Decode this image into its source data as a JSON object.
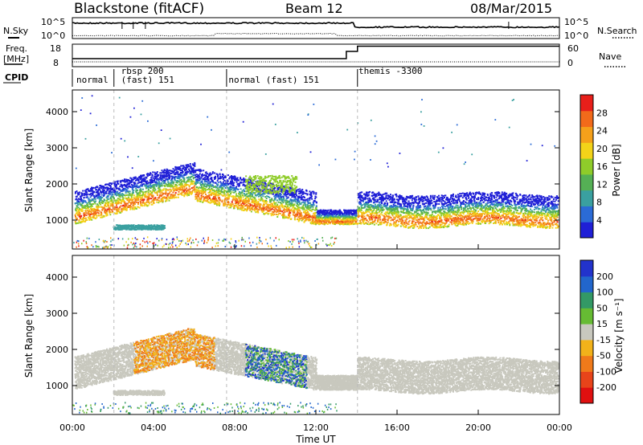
{
  "header": {
    "station": "Blackstone (fitACF)",
    "beam": "Beam 12",
    "date": "08/Mar/2015"
  },
  "side_labels": {
    "nsky": "N.Sky",
    "nsearch": "N.Search",
    "freq_line1": "Freq.",
    "freq_line2": "[MHz]",
    "nave": "Nave",
    "cpid": "CPID"
  },
  "noise_panel": {
    "left_ticks": [
      "10^5",
      "10^0"
    ],
    "right_ticks": [
      "10^5",
      "10^0"
    ]
  },
  "freq_panel": {
    "left_ticks": [
      "18",
      "8"
    ],
    "right_ticks": [
      "60",
      "0"
    ]
  },
  "cpid_labels": [
    {
      "text": "normal",
      "hour": 0.2
    },
    {
      "text": "rbsp 200",
      "hour": 2.4
    },
    {
      "text": "(fast) 151",
      "hour": 2.4
    },
    {
      "text": "normal (fast) 151",
      "hour": 7.7
    },
    {
      "text": "themis -3300",
      "hour": 14.1
    }
  ],
  "cpid_changes_hours": [
    2.05,
    7.6,
    14.05
  ],
  "colors": {
    "power_scale": [
      "#1f1fd6",
      "#2b6bd6",
      "#3aa0a0",
      "#55b055",
      "#8fcc2a",
      "#f3d319",
      "#f5a01a",
      "#f26a1a",
      "#e81f1a"
    ],
    "velocity_scale": [
      "#2233cc",
      "#2266cc",
      "#339966",
      "#66bb33",
      "#c8c8be",
      "#f2b21a",
      "#f07a1a",
      "#e8441a",
      "#e01010"
    ],
    "gray_scatter": "#c8c8be"
  },
  "chart_data": [
    {
      "type": "heatmap",
      "name_role": "power panel",
      "ylabel": "Slant Range [km]",
      "yticks": [
        1000,
        2000,
        3000,
        4000
      ],
      "ylim": [
        200,
        4600
      ],
      "xlim": [
        0,
        24
      ],
      "xticks": [
        "00:00",
        "04:00",
        "08:00",
        "12:00",
        "16:00",
        "20:00",
        "00:00"
      ],
      "colorbar": {
        "label": "Power [dB]",
        "ticks": [
          4,
          8,
          12,
          16,
          20,
          24,
          28
        ],
        "range": [
          0,
          30
        ]
      }
    },
    {
      "type": "heatmap",
      "name_role": "velocity panel",
      "ylabel": "Slant Range [km]",
      "yticks": [
        1000,
        2000,
        3000,
        4000
      ],
      "ylim": [
        200,
        4600
      ],
      "xlim": [
        0,
        24
      ],
      "xticks": [
        "00:00",
        "04:00",
        "08:00",
        "12:00",
        "16:00",
        "20:00",
        "00:00"
      ],
      "xlabel": "Time UT",
      "colorbar": {
        "label": "Velocity [m s⁻¹]",
        "ticks": [
          200,
          100,
          50,
          15,
          -15,
          -50,
          -100,
          -200
        ]
      }
    }
  ]
}
